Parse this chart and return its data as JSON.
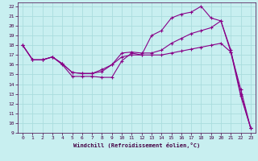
{
  "xlabel": "Windchill (Refroidissement éolien,°C)",
  "bg_color": "#c8eff0",
  "grid_color": "#aadddd",
  "line_color": "#880088",
  "xlim": [
    -0.5,
    23.5
  ],
  "ylim": [
    9,
    22.4
  ],
  "xticks": [
    0,
    1,
    2,
    3,
    4,
    5,
    6,
    7,
    8,
    9,
    10,
    11,
    12,
    13,
    14,
    15,
    16,
    17,
    18,
    19,
    20,
    21,
    22,
    23
  ],
  "yticks": [
    9,
    10,
    11,
    12,
    13,
    14,
    15,
    16,
    17,
    18,
    19,
    20,
    21,
    22
  ],
  "line1_x": [
    0,
    1,
    2,
    3,
    4,
    5,
    6,
    7,
    8,
    9,
    10,
    11,
    12,
    13,
    14,
    15,
    16,
    17,
    18,
    19,
    20,
    21,
    22,
    23
  ],
  "line1_y": [
    18.0,
    16.5,
    16.5,
    16.8,
    16.0,
    14.8,
    14.8,
    14.8,
    14.7,
    14.7,
    16.4,
    17.2,
    17.0,
    19.0,
    19.5,
    20.8,
    21.2,
    21.4,
    22.0,
    20.8,
    20.5,
    17.3,
    12.8,
    9.5
  ],
  "line2_x": [
    0,
    1,
    2,
    3,
    4,
    5,
    6,
    7,
    8,
    9,
    10,
    11,
    12,
    13,
    14,
    15,
    16,
    17,
    18,
    19,
    20,
    21,
    22,
    23
  ],
  "line2_y": [
    18.0,
    16.5,
    16.5,
    16.8,
    16.1,
    15.2,
    15.1,
    15.1,
    15.5,
    16.0,
    17.2,
    17.3,
    17.2,
    17.2,
    17.5,
    18.2,
    18.7,
    19.2,
    19.5,
    19.8,
    20.5,
    17.5,
    13.0,
    9.5
  ],
  "line3_x": [
    0,
    1,
    2,
    3,
    4,
    5,
    6,
    7,
    8,
    9,
    10,
    11,
    12,
    13,
    14,
    15,
    16,
    17,
    18,
    19,
    20,
    21,
    22,
    23
  ],
  "line3_y": [
    18.0,
    16.5,
    16.5,
    16.8,
    16.1,
    15.2,
    15.1,
    15.1,
    15.3,
    16.0,
    16.8,
    17.0,
    17.0,
    17.0,
    17.0,
    17.2,
    17.4,
    17.6,
    17.8,
    18.0,
    18.2,
    17.3,
    13.5,
    9.5
  ]
}
